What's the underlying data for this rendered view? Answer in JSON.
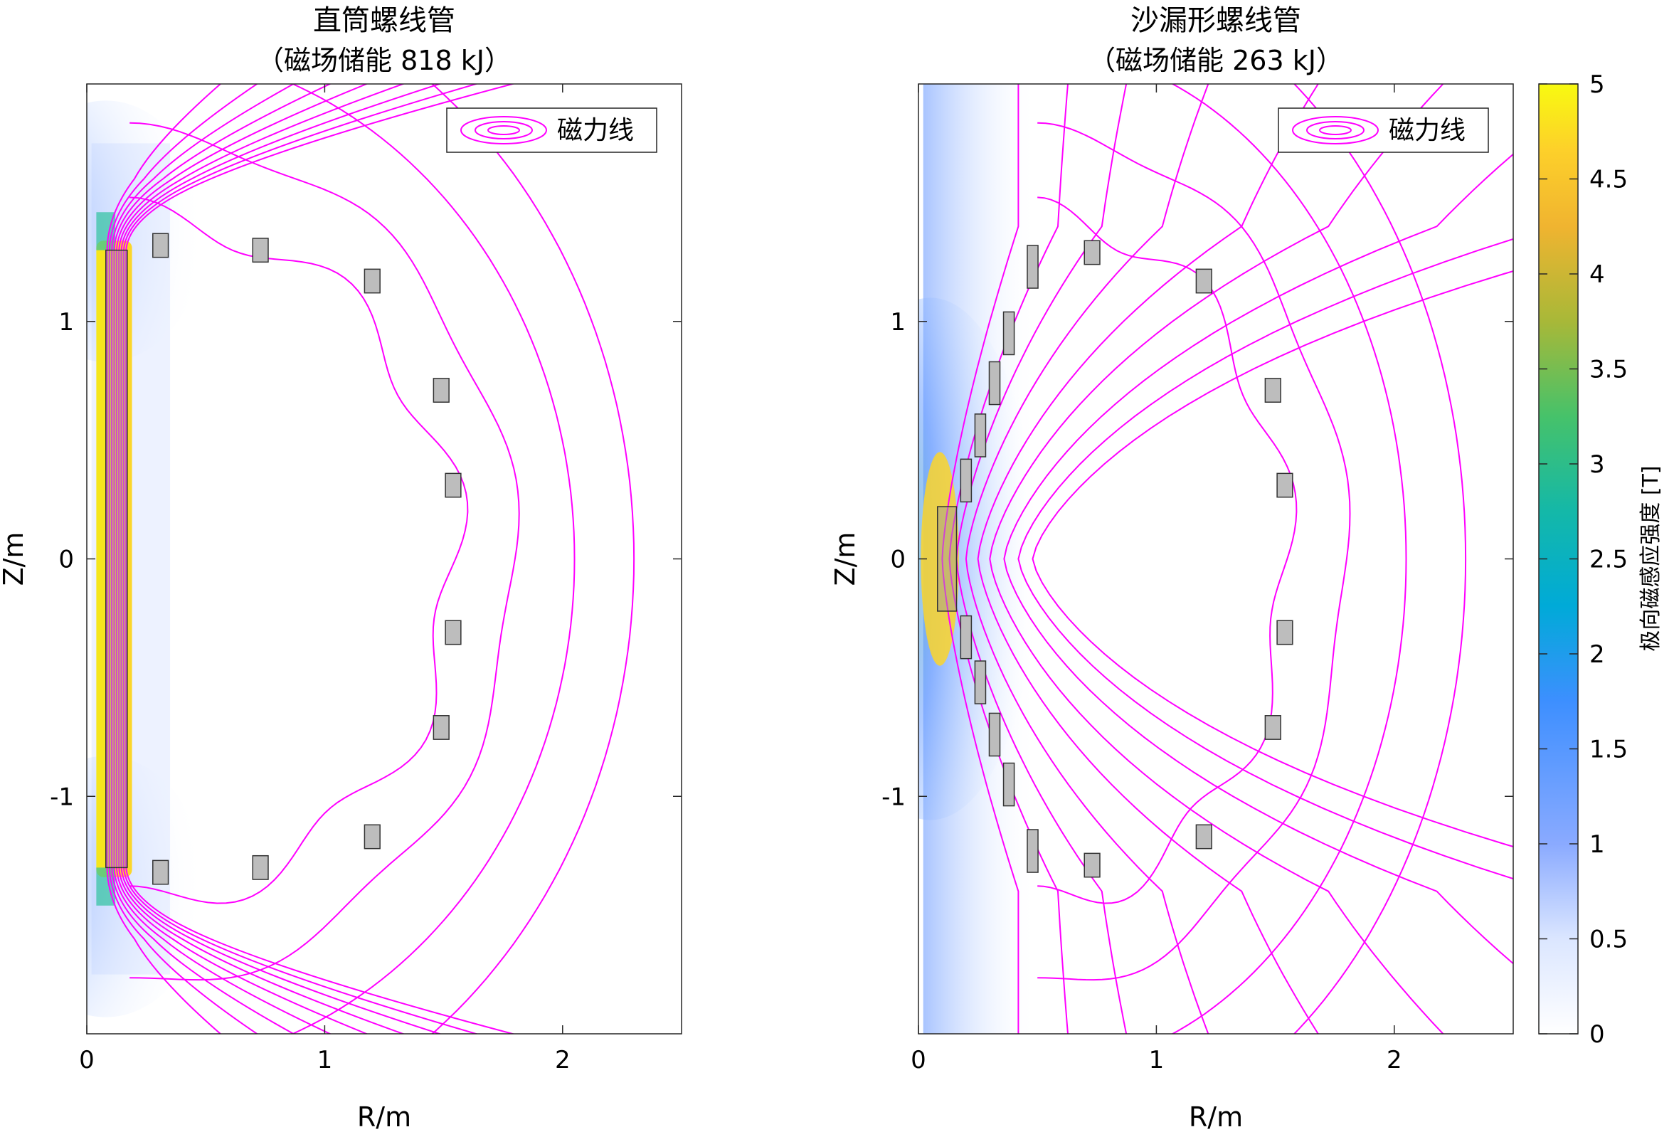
{
  "chart_data": [
    {
      "type": "heatmap",
      "title": "直筒螺线管",
      "subtitle": "（磁场储能 818 kJ）",
      "xlabel": "R/m",
      "ylabel": "Z/m",
      "xlim": [
        0,
        2.5
      ],
      "ylim": [
        -2,
        2
      ],
      "xticks": [
        0,
        1,
        2
      ],
      "yticks": [
        -1,
        0,
        1
      ],
      "legend": {
        "label": "磁力线",
        "position": "top-right"
      },
      "line_color": "#ff00ff",
      "central_coil": [
        0.08,
        0.17,
        -1.3,
        1.3
      ],
      "pf_coils": [
        [
          0.31,
          1.32
        ],
        [
          0.73,
          1.3
        ],
        [
          1.2,
          1.17
        ],
        [
          1.49,
          0.71
        ],
        [
          1.54,
          0.31
        ],
        [
          0.31,
          -1.32
        ],
        [
          0.73,
          -1.3
        ],
        [
          1.2,
          -1.17
        ],
        [
          1.49,
          -0.71
        ],
        [
          1.54,
          -0.31
        ]
      ],
      "field_lines": [
        0.085,
        0.095,
        0.105,
        0.115,
        0.125,
        0.135,
        0.145,
        0.155,
        0.165
      ],
      "outer_lines": [
        0.29,
        0.33,
        0.45,
        0.75
      ]
    },
    {
      "type": "heatmap",
      "title": "沙漏形螺线管",
      "subtitle": "（磁场储能 263 kJ）",
      "xlabel": "R/m",
      "ylabel": "Z/m",
      "xlim": [
        0,
        2.5
      ],
      "ylim": [
        -2,
        2
      ],
      "xticks": [
        0,
        1,
        2
      ],
      "yticks": [
        -1,
        0,
        1
      ],
      "legend": {
        "label": "磁力线",
        "position": "top-right"
      },
      "line_color": "#ff00ff",
      "central_coil": [
        0.08,
        0.16,
        -0.22,
        0.22
      ],
      "stack_coils": [
        [
          0.2,
          0.33
        ],
        [
          0.26,
          0.52
        ],
        [
          0.32,
          0.74
        ],
        [
          0.38,
          0.95
        ],
        [
          0.48,
          1.23
        ],
        [
          0.2,
          -0.33
        ],
        [
          0.26,
          -0.52
        ],
        [
          0.32,
          -0.74
        ],
        [
          0.38,
          -0.95
        ],
        [
          0.48,
          -1.23
        ]
      ],
      "pf_coils": [
        [
          0.73,
          1.29
        ],
        [
          1.2,
          1.17
        ],
        [
          1.49,
          0.71
        ],
        [
          1.54,
          0.31
        ],
        [
          0.73,
          -1.29
        ],
        [
          1.2,
          -1.17
        ],
        [
          1.49,
          -0.71
        ],
        [
          1.54,
          -0.31
        ]
      ],
      "field_lines": [
        0.1,
        0.13,
        0.16,
        0.2,
        0.25,
        0.3,
        0.36,
        0.42,
        0.48
      ],
      "outer_lines": [
        0.29,
        0.33,
        0.45,
        0.75
      ]
    }
  ],
  "colorbar": {
    "label": "极向磁感应强度 [T]",
    "range": [
      0,
      5
    ],
    "ticks": [
      "0",
      "0.5",
      "1",
      "1.5",
      "2",
      "2.5",
      "3",
      "3.5",
      "4",
      "4.5",
      "5"
    ],
    "colors": [
      "#ffffff",
      "#7da0ff",
      "#00aee0",
      "#35c27a",
      "#c2b52a",
      "#ffc028",
      "#fbfa14"
    ]
  }
}
